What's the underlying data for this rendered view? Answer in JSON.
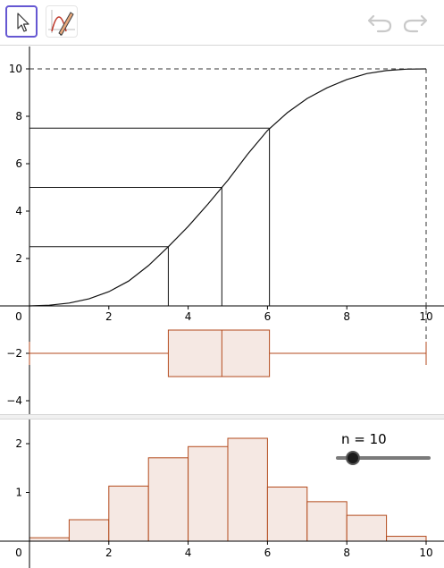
{
  "toolbar": {
    "tools": [
      {
        "name": "move-tool",
        "icon": "arrow-cursor-icon",
        "selected": true
      },
      {
        "name": "function-tool",
        "icon": "pencil-graph-icon",
        "selected": false
      }
    ],
    "actions": [
      {
        "name": "undo-button",
        "icon": "undo-icon"
      },
      {
        "name": "redo-button",
        "icon": "redo-icon"
      }
    ]
  },
  "colors": {
    "accent": "#6557d2",
    "bar_stroke": "#b34a1c",
    "bar_fill": "#f5e8e3",
    "axis": "#000000",
    "slider_track": "#7a7a7a",
    "slider_knob": "#1a1a1a"
  },
  "slider": {
    "label": "n = 10",
    "value": 10
  },
  "chart_data": [
    {
      "type": "line",
      "name": "cumulative-frequency",
      "xlim": [
        0,
        10
      ],
      "ylim": [
        0,
        10
      ],
      "x_ticks": [
        "0",
        "2",
        "4",
        "6",
        "8",
        "10"
      ],
      "y_ticks": [
        "2",
        "4",
        "6",
        "8",
        "10"
      ],
      "curve": {
        "x": [
          0,
          0.5,
          1,
          1.5,
          2,
          2.5,
          3,
          3.5,
          4,
          4.5,
          5,
          5.5,
          6,
          6.5,
          7,
          7.5,
          8,
          8.5,
          9,
          9.5,
          10
        ],
        "y": [
          0,
          0.03,
          0.12,
          0.3,
          0.6,
          1.05,
          1.7,
          2.5,
          3.35,
          4.3,
          5.3,
          6.4,
          7.4,
          8.15,
          8.75,
          9.2,
          9.55,
          9.8,
          9.93,
          9.99,
          10
        ]
      },
      "quartile_guides": [
        {
          "x": 3.5,
          "y": 2.5
        },
        {
          "x": 4.85,
          "y": 5
        },
        {
          "x": 6.05,
          "y": 7.5
        }
      ],
      "max_guide": {
        "x": 10,
        "y": 10
      }
    },
    {
      "type": "box",
      "name": "box-plot",
      "y_ticks": [
        "−2",
        "−4"
      ],
      "min": 0,
      "q1": 3.5,
      "median": 4.85,
      "q3": 6.05,
      "max": 10
    },
    {
      "type": "bar",
      "name": "histogram",
      "xlim": [
        0,
        10
      ],
      "ylim": [
        0,
        2.3
      ],
      "x_ticks": [
        "0",
        "2",
        "4",
        "6",
        "8",
        "10"
      ],
      "y_ticks": [
        "1",
        "2"
      ],
      "bins": [
        {
          "from": 0,
          "to": 1,
          "value": 0.07
        },
        {
          "from": 1,
          "to": 2,
          "value": 0.44
        },
        {
          "from": 2,
          "to": 3,
          "value": 1.13
        },
        {
          "from": 3,
          "to": 4,
          "value": 1.71
        },
        {
          "from": 4,
          "to": 5,
          "value": 1.94
        },
        {
          "from": 5,
          "to": 6,
          "value": 2.11
        },
        {
          "from": 6,
          "to": 7,
          "value": 1.11
        },
        {
          "from": 7,
          "to": 8,
          "value": 0.81
        },
        {
          "from": 8,
          "to": 9,
          "value": 0.53
        },
        {
          "from": 9,
          "to": 10,
          "value": 0.1
        }
      ]
    }
  ]
}
